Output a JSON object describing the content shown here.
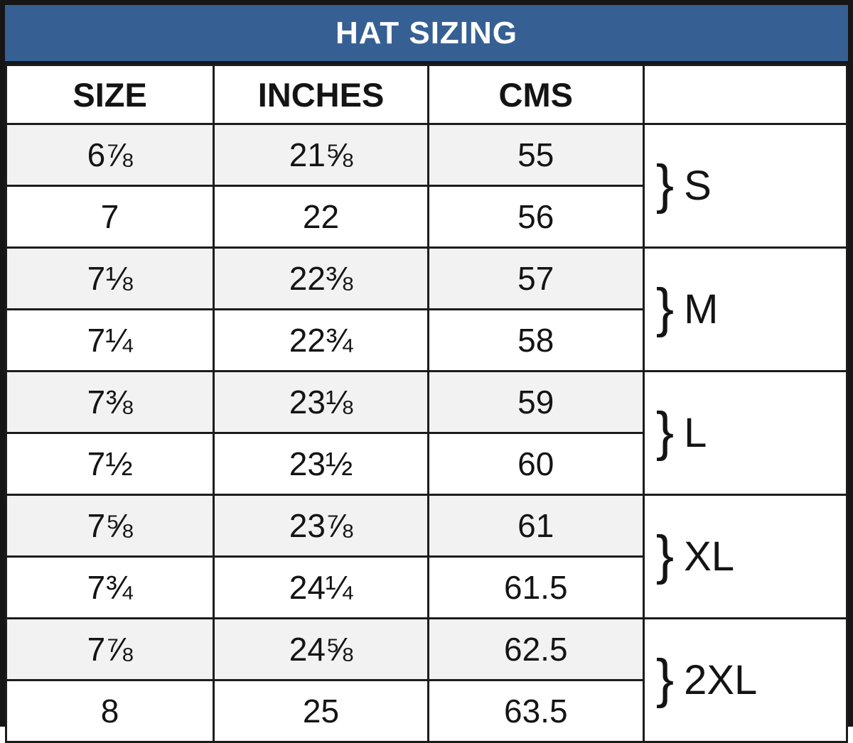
{
  "title": "HAT SIZING",
  "table": {
    "columns": {
      "size": "SIZE",
      "inches": "INCHES",
      "cms": "CMS",
      "group": ""
    },
    "brace": "}",
    "rows": [
      {
        "size": "6⅞",
        "inches": "21⅝",
        "cms": "55"
      },
      {
        "size": "7",
        "inches": "22",
        "cms": "56"
      },
      {
        "size": "7⅛",
        "inches": "22⅜",
        "cms": "57"
      },
      {
        "size": "7¼",
        "inches": "22¾",
        "cms": "58"
      },
      {
        "size": "7⅜",
        "inches": "23⅛",
        "cms": "59"
      },
      {
        "size": "7½",
        "inches": "23½",
        "cms": "60"
      },
      {
        "size": "7⅝",
        "inches": "23⅞",
        "cms": "61"
      },
      {
        "size": "7¾",
        "inches": "24¼",
        "cms": "61.5"
      },
      {
        "size": "7⅞",
        "inches": "24⅝",
        "cms": "62.5"
      },
      {
        "size": "8",
        "inches": "25",
        "cms": "63.5"
      }
    ],
    "groups": [
      {
        "label": "S"
      },
      {
        "label": "M"
      },
      {
        "label": "L"
      },
      {
        "label": "XL"
      },
      {
        "label": "2XL"
      }
    ],
    "rows_per_group": 2
  },
  "colors": {
    "title_bg": "#366093",
    "title_text": "#FFFFFF",
    "alt_row_bg": "#F2F2F2",
    "grid_line": "#1C1C1C",
    "cell_text": "#141414"
  }
}
